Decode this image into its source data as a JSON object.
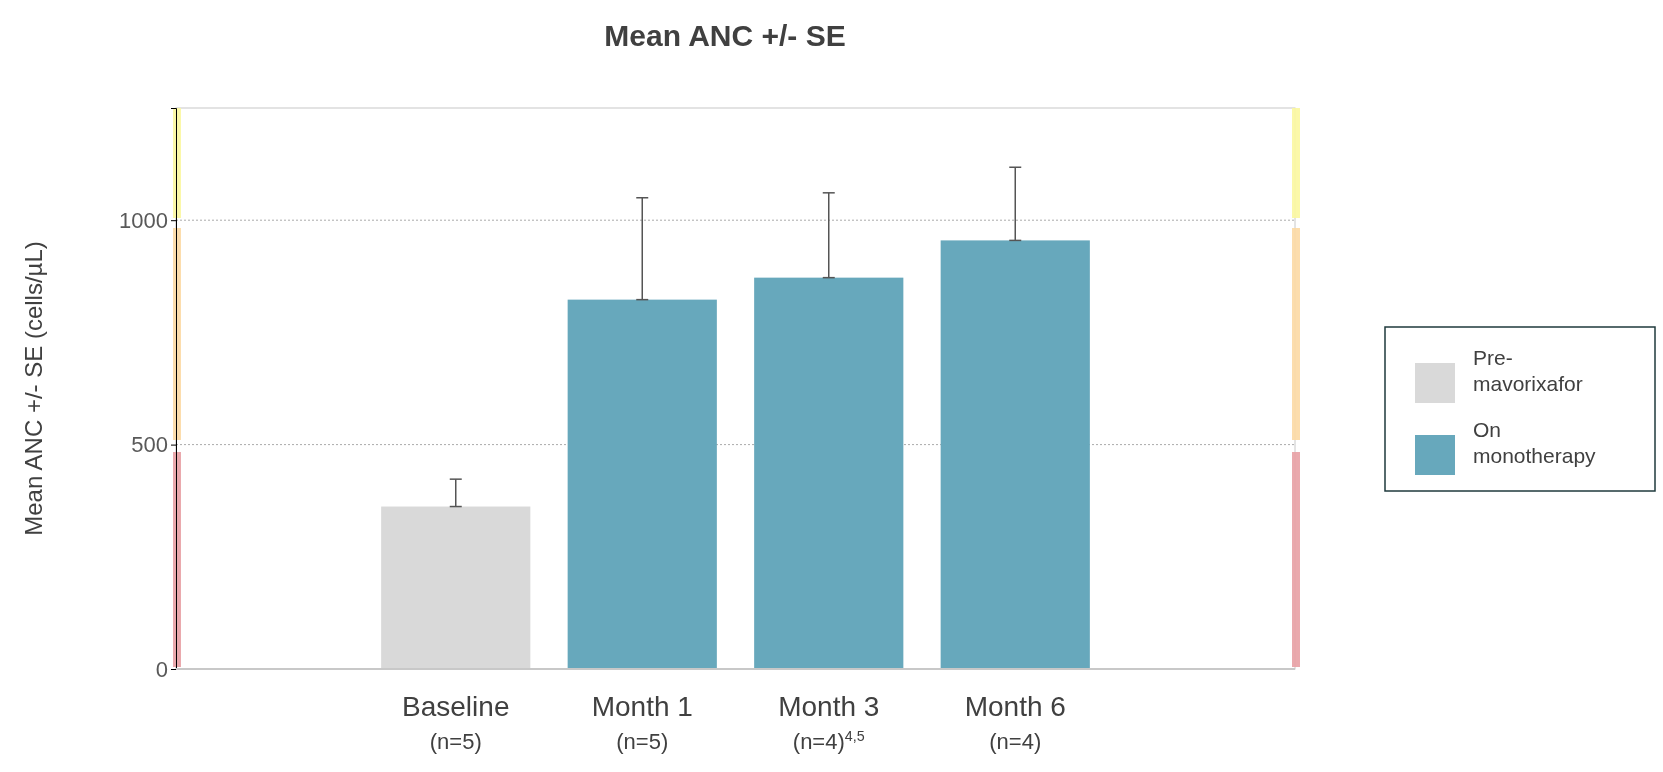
{
  "chart_data": {
    "type": "bar",
    "title": "Mean ANC +/- SE",
    "ylabel": "Mean ANC +/- SE (cells/µL)",
    "categories": [
      "Baseline\n(n=5)",
      "Month 1\n(n=5)",
      "Month 3\n(n=4)$^{4,5}$",
      "Month 6\n(n=4)"
    ],
    "series": [
      {
        "name": "Pre-mavorixafor",
        "color": "#d9d9d9",
        "values": [
          362,
          null,
          null,
          null
        ],
        "errors": [
          [
            362,
            423
          ],
          null,
          null,
          null
        ]
      },
      {
        "name": "On monotherapy",
        "color": "#67a8bc",
        "values": [
          null,
          823,
          872,
          955
        ],
        "errors": [
          null,
          [
            823,
            1050
          ],
          [
            872,
            1061
          ],
          [
            955,
            1118
          ]
        ]
      }
    ],
    "ylim": [
      0,
      1250
    ],
    "yticks": [
      0,
      500,
      1000
    ],
    "grid": "y",
    "legend": "right"
  }
}
